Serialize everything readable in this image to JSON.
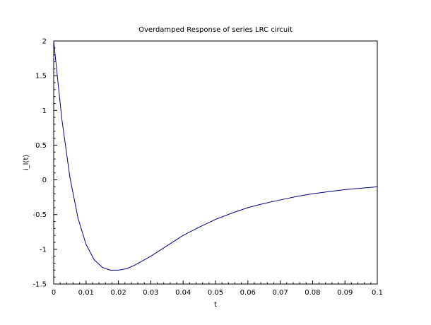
{
  "chart_data": {
    "type": "line",
    "title": "Overdamped Response of series LRC circuit",
    "xlabel": "t",
    "ylabel": "i_l(t)",
    "xlim": [
      0,
      0.1
    ],
    "ylim": [
      -1.5,
      2
    ],
    "grid": false,
    "x_ticks": [
      0,
      0.01,
      0.02,
      0.03,
      0.04,
      0.05,
      0.06,
      0.07,
      0.08,
      0.09,
      0.1
    ],
    "x_tick_labels": [
      "0",
      "0.01",
      "0.02",
      "0.03",
      "0.04",
      "0.05",
      "0.06",
      "0.07",
      "0.08",
      "0.09",
      "0.1"
    ],
    "y_ticks": [
      -1.5,
      -1,
      -0.5,
      0,
      0.5,
      1,
      1.5,
      2
    ],
    "y_tick_labels": [
      "-1.5",
      "-1",
      "-0.5",
      "0",
      "0.5",
      "1",
      "1.5",
      "2"
    ],
    "series": [
      {
        "color": "#00008b",
        "x": [
          0,
          0.0025,
          0.005,
          0.0075,
          0.01,
          0.0125,
          0.015,
          0.0175,
          0.02,
          0.0225,
          0.025,
          0.03,
          0.035,
          0.04,
          0.045,
          0.05,
          0.055,
          0.06,
          0.065,
          0.07,
          0.075,
          0.08,
          0.085,
          0.09,
          0.095,
          0.1
        ],
        "y": [
          2,
          0.88,
          0.04,
          -0.55,
          -0.93,
          -1.15,
          -1.26,
          -1.3,
          -1.3,
          -1.28,
          -1.23,
          -1.1,
          -0.95,
          -0.8,
          -0.68,
          -0.57,
          -0.48,
          -0.4,
          -0.34,
          -0.29,
          -0.24,
          -0.2,
          -0.17,
          -0.14,
          -0.12,
          -0.1
        ]
      }
    ]
  }
}
